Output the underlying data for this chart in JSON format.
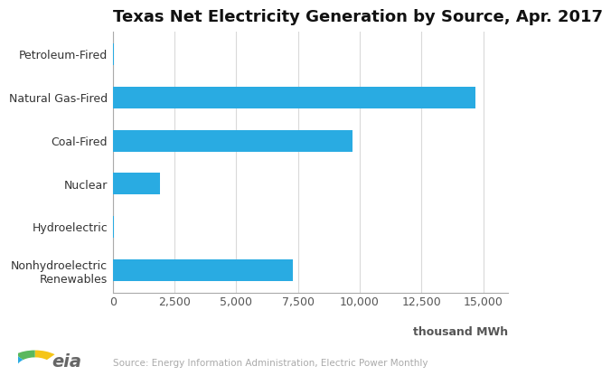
{
  "title": "Texas Net Electricity Generation by Source, Apr. 2017",
  "categories": [
    "Petroleum-Fired",
    "Natural Gas-Fired",
    "Coal-Fired",
    "Nuclear",
    "Hydroelectric",
    "Nonhydroelectric\nRenewables"
  ],
  "values": [
    30,
    14700,
    9700,
    1900,
    60,
    7300
  ],
  "bar_color": "#29ABE2",
  "background_color": "#ffffff",
  "xlim": [
    0,
    16000
  ],
  "xticks": [
    0,
    2500,
    5000,
    7500,
    10000,
    12500,
    15000
  ],
  "xtick_labels": [
    "0",
    "2,500",
    "5,000",
    "7,500",
    "10,000",
    "12,500",
    "15,000"
  ],
  "xlabel": "thousand MWh",
  "title_fontsize": 13,
  "axis_fontsize": 9,
  "ytick_fontsize": 9,
  "source_text": "Source: Energy Information Administration, Electric Power Monthly",
  "grid_color": "#d9d9d9",
  "bar_height": 0.5,
  "logo_yellow": "#F5C518",
  "logo_green": "#5BB85D",
  "logo_blue": "#29ABE2"
}
